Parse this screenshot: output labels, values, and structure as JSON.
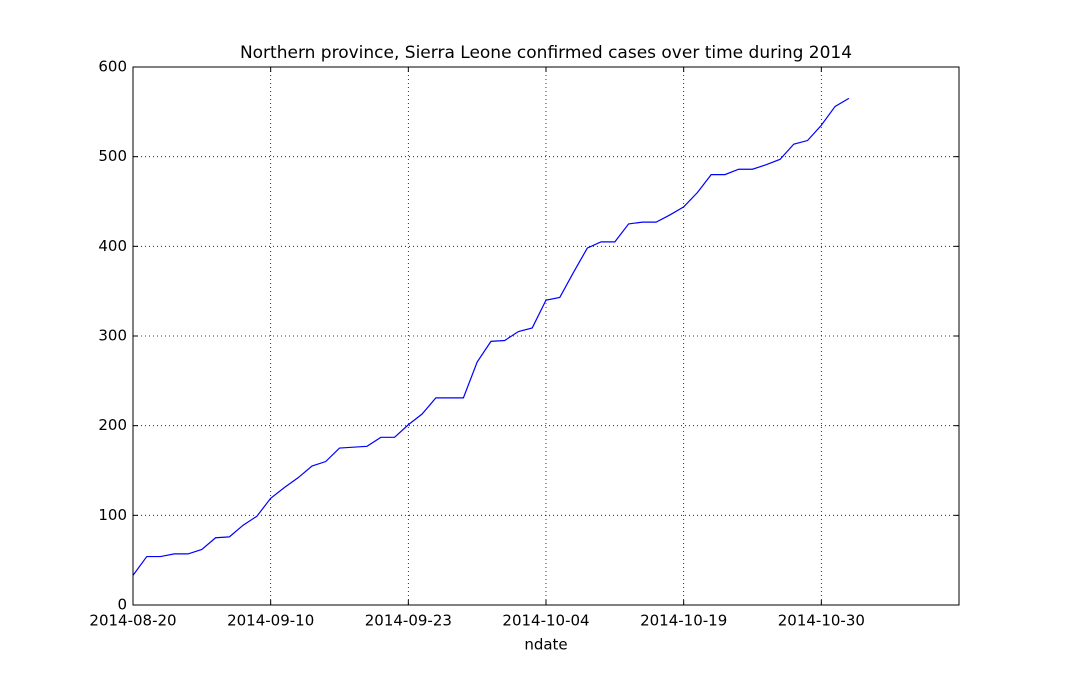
{
  "chart_data": {
    "type": "line",
    "title": "Northern province, Sierra Leone confirmed cases over time during 2014",
    "x_label": "ndate",
    "categories": [
      "2014-08-20",
      null,
      null,
      null,
      null,
      null,
      null,
      null,
      null,
      null,
      "2014-09-10",
      null,
      null,
      null,
      null,
      null,
      null,
      null,
      null,
      null,
      "2014-09-23",
      null,
      null,
      null,
      null,
      null,
      null,
      null,
      null,
      null,
      "2014-10-04",
      null,
      null,
      null,
      null,
      null,
      null,
      null,
      null,
      null,
      "2014-10-19",
      null,
      null,
      null,
      null,
      null,
      null,
      null,
      null,
      null,
      "2014-10-30",
      null,
      null
    ],
    "xlim": [
      0,
      60
    ],
    "series": [
      {
        "color": "#0000ff",
        "values": [
          33,
          54,
          54,
          57,
          57,
          62,
          75,
          76,
          89,
          99,
          119,
          131,
          142,
          155,
          160,
          175,
          176,
          177,
          187,
          187,
          201,
          213,
          231,
          231,
          231,
          271,
          294,
          295,
          305,
          309,
          340,
          343,
          371,
          398,
          405,
          405,
          425,
          427,
          427,
          435,
          444,
          460,
          480,
          480,
          486,
          486,
          491,
          497,
          514,
          518,
          535,
          556,
          565
        ]
      }
    ],
    "ylim": [
      0,
      600
    ],
    "yticks": [
      0,
      100,
      200,
      300,
      400,
      500,
      600
    ],
    "grid": true
  }
}
